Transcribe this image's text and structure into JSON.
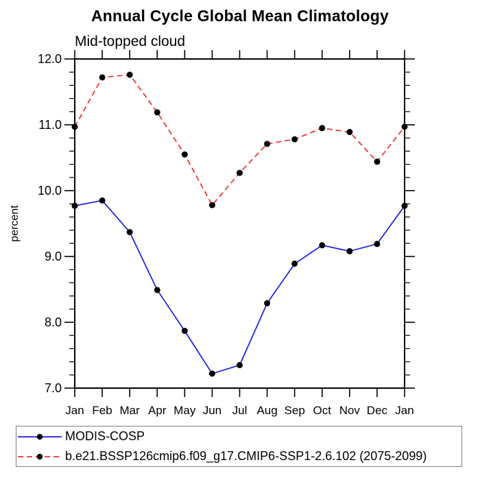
{
  "chart_data": {
    "type": "line",
    "title": "Annual Cycle Global Mean Climatology",
    "subtitle": "Mid-topped cloud",
    "xlabel": "",
    "ylabel": "percent",
    "categories": [
      "Jan",
      "Feb",
      "Mar",
      "Apr",
      "May",
      "Jun",
      "Jul",
      "Aug",
      "Sep",
      "Oct",
      "Nov",
      "Dec",
      "Jan"
    ],
    "ylim": [
      7.0,
      12.0
    ],
    "ytick_values": [
      7.0,
      8.0,
      9.0,
      10.0,
      11.0,
      12.0
    ],
    "ytick_labels": [
      "7.0",
      "8.0",
      "9.0",
      "10.0",
      "11.0",
      "12.0"
    ],
    "y_minor_step": 0.2,
    "grid": false,
    "legend_position": "bottom",
    "axis_color": "#000000",
    "marker": {
      "shape": "filled-circle",
      "color": "#000000"
    },
    "series": [
      {
        "name": "MODIS-COSP",
        "color": "#1a1ae0",
        "line_style": "solid",
        "values": [
          9.77,
          9.85,
          9.37,
          8.49,
          7.87,
          7.22,
          7.35,
          8.29,
          8.89,
          9.17,
          9.08,
          9.19,
          9.77
        ]
      },
      {
        "name": "b.e21.BSSP126cmip6.f09_g17.CMIP6-SSP1-2.6.102 (2075-2099)",
        "color": "#ee2e2e",
        "line_style": "dashed",
        "values": [
          10.97,
          11.72,
          11.76,
          11.19,
          10.55,
          9.78,
          10.27,
          10.71,
          10.78,
          10.95,
          10.89,
          10.44,
          10.97
        ]
      }
    ]
  }
}
